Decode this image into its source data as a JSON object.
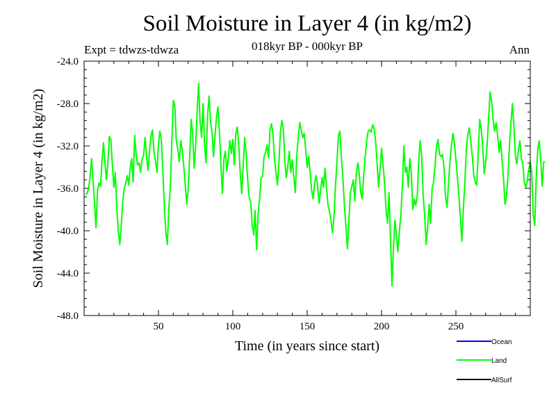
{
  "header": {
    "title": "Soil Moisture in Layer 4 (in kg/m2)",
    "subtitle": "018kyr BP - 000kyr BP",
    "experiment": "Expt = tdwzs-tdwza",
    "season": "Ann"
  },
  "chart_data": {
    "type": "line",
    "title": "Soil Moisture in Layer 4 (in kg/m2)",
    "xlabel": "Time (in years since start)",
    "ylabel": "Soil Moisture in Layer 4 (in kg/m2)",
    "xlim": [
      0,
      300
    ],
    "ylim": [
      -48.0,
      -24.0
    ],
    "x_ticks": [
      50,
      100,
      150,
      200,
      250
    ],
    "y_ticks": [
      "-24.0",
      "-28.0",
      "-32.0",
      "-36.0",
      "-40.0",
      "-44.0",
      "-48.0"
    ],
    "legend": [
      "Ocean",
      "Land",
      "AllSurf"
    ],
    "colors": {
      "Ocean": "#0000ff",
      "Land": "#00ff00",
      "AllSurf": "#000000"
    },
    "series": [
      {
        "name": "Land",
        "color": "#00ff00",
        "x_start": 1,
        "x_step": 1,
        "values": [
          -36.6,
          -36.5,
          -36.0,
          -35.0,
          -33.2,
          -35.2,
          -37.4,
          -39.7,
          -36.2,
          -35.5,
          -35.8,
          -33.5,
          -31.7,
          -33.5,
          -35.2,
          -33.6,
          -31.1,
          -31.4,
          -33.8,
          -35.9,
          -34.5,
          -38.0,
          -40.0,
          -41.3,
          -39.5,
          -37.2,
          -36.0,
          -35.5,
          -34.8,
          -35.7,
          -34.1,
          -33.2,
          -35.4,
          -31.0,
          -32.9,
          -33.8,
          -33.6,
          -34.5,
          -33.2,
          -32.9,
          -31.2,
          -33.0,
          -34.3,
          -32.5,
          -31.0,
          -30.5,
          -32.6,
          -33.4,
          -34.5,
          -31.8,
          -30.6,
          -31.5,
          -34.6,
          -37.8,
          -40.2,
          -41.3,
          -37.8,
          -35.9,
          -31.5,
          -27.7,
          -28.2,
          -31.5,
          -32.3,
          -33.5,
          -31.5,
          -32.4,
          -33.9,
          -35.6,
          -37.5,
          -36.1,
          -33.0,
          -29.5,
          -30.8,
          -34.1,
          -32.0,
          -28.8,
          -26.1,
          -29.7,
          -31.2,
          -28.0,
          -32.0,
          -33.6,
          -29.2,
          -27.3,
          -29.7,
          -30.6,
          -33.0,
          -31.0,
          -29.3,
          -28.3,
          -30.6,
          -33.8,
          -36.5,
          -33.2,
          -32.5,
          -34.4,
          -33.0,
          -31.5,
          -32.7,
          -31.4,
          -33.8,
          -30.8,
          -30.2,
          -32.0,
          -34.6,
          -36.5,
          -33.8,
          -31.2,
          -32.9,
          -35.2,
          -36.8,
          -37.3,
          -39.4,
          -40.4,
          -38.1,
          -41.8,
          -38.4,
          -37.0,
          -35.0,
          -34.9,
          -33.0,
          -32.6,
          -31.9,
          -33.1,
          -30.5,
          -29.9,
          -30.9,
          -33.2,
          -34.5,
          -35.7,
          -33.6,
          -30.6,
          -29.6,
          -30.5,
          -33.5,
          -35.0,
          -33.8,
          -32.5,
          -34.5,
          -33.3,
          -34.9,
          -36.4,
          -33.0,
          -31.1,
          -29.8,
          -30.5,
          -31.2,
          -30.8,
          -32.4,
          -34.0,
          -33.0,
          -34.5,
          -36.2,
          -37.0,
          -35.5,
          -34.8,
          -35.8,
          -37.4,
          -36.2,
          -35.0,
          -35.9,
          -34.1,
          -36.0,
          -37.6,
          -38.2,
          -39.0,
          -40.2,
          -38.8,
          -35.7,
          -33.6,
          -31.0,
          -30.6,
          -33.1,
          -35.0,
          -37.6,
          -39.5,
          -41.7,
          -39.2,
          -36.4,
          -35.8,
          -35.2,
          -37.2,
          -34.6,
          -33.6,
          -34.6,
          -36.4,
          -37.0,
          -34.8,
          -33.0,
          -31.5,
          -30.6,
          -30.5,
          -30.7,
          -30.0,
          -30.3,
          -31.5,
          -33.6,
          -35.9,
          -34.1,
          -32.2,
          -33.8,
          -35.4,
          -38.0,
          -39.3,
          -36.4,
          -40.6,
          -45.2,
          -41.6,
          -39.0,
          -40.5,
          -42.0,
          -40.0,
          -38.5,
          -35.8,
          -32.0,
          -34.5,
          -34.0,
          -35.9,
          -33.2,
          -34.5,
          -38.0,
          -37.0,
          -37.6,
          -36.7,
          -33.4,
          -31.5,
          -33.0,
          -36.7,
          -38.6,
          -41.3,
          -39.7,
          -37.5,
          -39.3,
          -36.0,
          -35.4,
          -33.8,
          -32.0,
          -31.4,
          -32.8,
          -33.0,
          -32.8,
          -34.1,
          -36.8,
          -37.8,
          -35.6,
          -33.5,
          -31.9,
          -30.8,
          -31.8,
          -33.3,
          -34.9,
          -36.7,
          -38.7,
          -41.0,
          -38.0,
          -35.5,
          -32.3,
          -30.9,
          -30.3,
          -31.6,
          -32.9,
          -34.8,
          -35.4,
          -35.7,
          -32.6,
          -29.5,
          -30.4,
          -32.0,
          -34.6,
          -33.6,
          -31.9,
          -29.3,
          -26.9,
          -27.8,
          -29.5,
          -30.6,
          -29.8,
          -31.0,
          -32.6,
          -31.5,
          -33.2,
          -35.0,
          -37.5,
          -36.8,
          -34.8,
          -32.0,
          -29.8,
          -28.0,
          -30.2,
          -33.0,
          -33.7,
          -32.4,
          -31.5,
          -33.2,
          -33.7,
          -35.4,
          -35.9,
          -35.3,
          -34.2,
          -33.5,
          -34.5,
          -38.5,
          -39.5,
          -35.0,
          -32.4,
          -31.5,
          -33.2,
          -35.8,
          -33.5,
          -33.5
        ]
      }
    ]
  }
}
